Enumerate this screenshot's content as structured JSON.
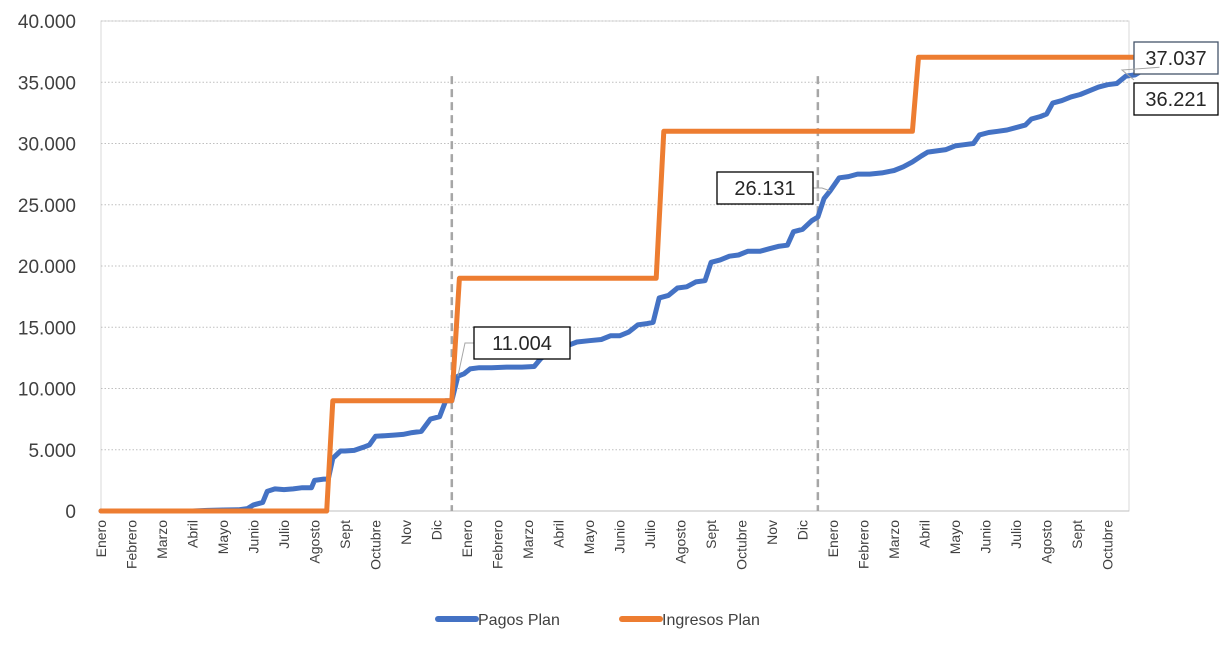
{
  "chart_data": {
    "type": "line",
    "title": "",
    "xlabel": "",
    "ylabel": "",
    "ylim": [
      0,
      40000
    ],
    "grid": true,
    "legend_position": "bottom",
    "y_ticks": [
      "0",
      "5.000",
      "10.000",
      "15.000",
      "20.000",
      "25.000",
      "30.000",
      "35.000",
      "40.000"
    ],
    "x_tick_labels": [
      "Enero",
      "Febrero",
      "Marzo",
      "Abril",
      "Mayo",
      "Junio",
      "Julio",
      "Agosto",
      "Sept",
      "Octubre",
      "Nov",
      "Dic",
      "Enero",
      "Febrero",
      "Marzo",
      "Abril",
      "Mayo",
      "Junio",
      "Julio",
      "Agosto",
      "Sept",
      "Octubre",
      "Nov",
      "Dic",
      "Enero",
      "Febrero",
      "Marzo",
      "Abril",
      "Mayo",
      "Junio",
      "Julio",
      "Agosto",
      "Sept",
      "Octubre"
    ],
    "year_separators_after_month_index": [
      11.5,
      23.5
    ],
    "series": [
      {
        "name": "Pagos Plan",
        "color": "#4472c4",
        "points": [
          [
            0,
            0
          ],
          [
            1,
            0
          ],
          [
            2,
            0
          ],
          [
            3,
            0
          ],
          [
            3.5,
            50
          ],
          [
            4,
            80
          ],
          [
            4.5,
            100
          ],
          [
            4.8,
            200
          ],
          [
            5,
            500
          ],
          [
            5.3,
            700
          ],
          [
            5.45,
            1600
          ],
          [
            5.7,
            1800
          ],
          [
            6,
            1750
          ],
          [
            6.3,
            1800
          ],
          [
            6.6,
            1900
          ],
          [
            6.9,
            1900
          ],
          [
            7,
            2500
          ],
          [
            7.3,
            2600
          ],
          [
            7.45,
            2600
          ],
          [
            7.6,
            4300
          ],
          [
            7.85,
            4900
          ],
          [
            8,
            4900
          ],
          [
            8.3,
            4950
          ],
          [
            8.6,
            5200
          ],
          [
            8.8,
            5400
          ],
          [
            9,
            6100
          ],
          [
            9.3,
            6150
          ],
          [
            9.6,
            6200
          ],
          [
            9.9,
            6250
          ],
          [
            10.2,
            6400
          ],
          [
            10.5,
            6500
          ],
          [
            10.8,
            7500
          ],
          [
            11.1,
            7700
          ],
          [
            11.3,
            9000
          ],
          [
            11.5,
            9000
          ],
          [
            11.7,
            11004
          ],
          [
            11.9,
            11200
          ],
          [
            12.1,
            11600
          ],
          [
            12.4,
            11700
          ],
          [
            12.8,
            11700
          ],
          [
            13.3,
            11750
          ],
          [
            13.8,
            11750
          ],
          [
            14.2,
            11800
          ],
          [
            14.4,
            12400
          ],
          [
            14.7,
            13000
          ],
          [
            15,
            13200
          ],
          [
            15.3,
            13500
          ],
          [
            15.6,
            13800
          ],
          [
            16,
            13900
          ],
          [
            16.4,
            14000
          ],
          [
            16.7,
            14300
          ],
          [
            17,
            14300
          ],
          [
            17.3,
            14600
          ],
          [
            17.6,
            15200
          ],
          [
            17.9,
            15300
          ],
          [
            18.1,
            15400
          ],
          [
            18.3,
            17400
          ],
          [
            18.6,
            17600
          ],
          [
            18.9,
            18200
          ],
          [
            19.2,
            18300
          ],
          [
            19.5,
            18700
          ],
          [
            19.8,
            18800
          ],
          [
            20,
            20300
          ],
          [
            20.3,
            20500
          ],
          [
            20.6,
            20800
          ],
          [
            20.9,
            20900
          ],
          [
            21.2,
            21200
          ],
          [
            21.6,
            21200
          ],
          [
            21.9,
            21400
          ],
          [
            22.2,
            21600
          ],
          [
            22.5,
            21700
          ],
          [
            22.7,
            22800
          ],
          [
            23,
            23000
          ],
          [
            23.3,
            23700
          ],
          [
            23.5,
            24000
          ],
          [
            23.7,
            25500
          ],
          [
            23.9,
            26131
          ],
          [
            24.2,
            27200
          ],
          [
            24.5,
            27300
          ],
          [
            24.8,
            27500
          ],
          [
            25.2,
            27500
          ],
          [
            25.6,
            27600
          ],
          [
            26,
            27800
          ],
          [
            26.3,
            28100
          ],
          [
            26.6,
            28500
          ],
          [
            26.9,
            29000
          ],
          [
            27.1,
            29300
          ],
          [
            27.4,
            29400
          ],
          [
            27.7,
            29500
          ],
          [
            28,
            29800
          ],
          [
            28.3,
            29900
          ],
          [
            28.6,
            30000
          ],
          [
            28.8,
            30700
          ],
          [
            29.1,
            30900
          ],
          [
            29.4,
            31000
          ],
          [
            29.7,
            31100
          ],
          [
            30,
            31300
          ],
          [
            30.3,
            31500
          ],
          [
            30.5,
            32000
          ],
          [
            30.8,
            32200
          ],
          [
            31,
            32400
          ],
          [
            31.2,
            33300
          ],
          [
            31.5,
            33500
          ],
          [
            31.8,
            33800
          ],
          [
            32.1,
            34000
          ],
          [
            32.4,
            34300
          ],
          [
            32.7,
            34600
          ],
          [
            33,
            34800
          ],
          [
            33.3,
            34900
          ],
          [
            33.6,
            35500
          ],
          [
            33.9,
            35600
          ],
          [
            34.1,
            35900
          ],
          [
            34.4,
            36100
          ],
          [
            34.7,
            36221
          ]
        ]
      },
      {
        "name": "Ingresos Plan",
        "color": "#ed7d31",
        "points": [
          [
            0,
            0
          ],
          [
            7.4,
            0
          ],
          [
            7.6,
            9000
          ],
          [
            11.5,
            9000
          ],
          [
            11.75,
            19000
          ],
          [
            18.2,
            19000
          ],
          [
            18.45,
            31000
          ],
          [
            26.6,
            31000
          ],
          [
            26.8,
            37037
          ],
          [
            34.7,
            37037
          ]
        ]
      }
    ],
    "annotations": [
      {
        "label": "11.004",
        "x": 11.7,
        "y": 11004
      },
      {
        "label": "26.131",
        "x": 23.9,
        "y": 26131
      },
      {
        "label": "37.037",
        "x": 34.7,
        "y": 37037
      },
      {
        "label": "36.221",
        "x": 34.7,
        "y": 36221
      }
    ]
  }
}
